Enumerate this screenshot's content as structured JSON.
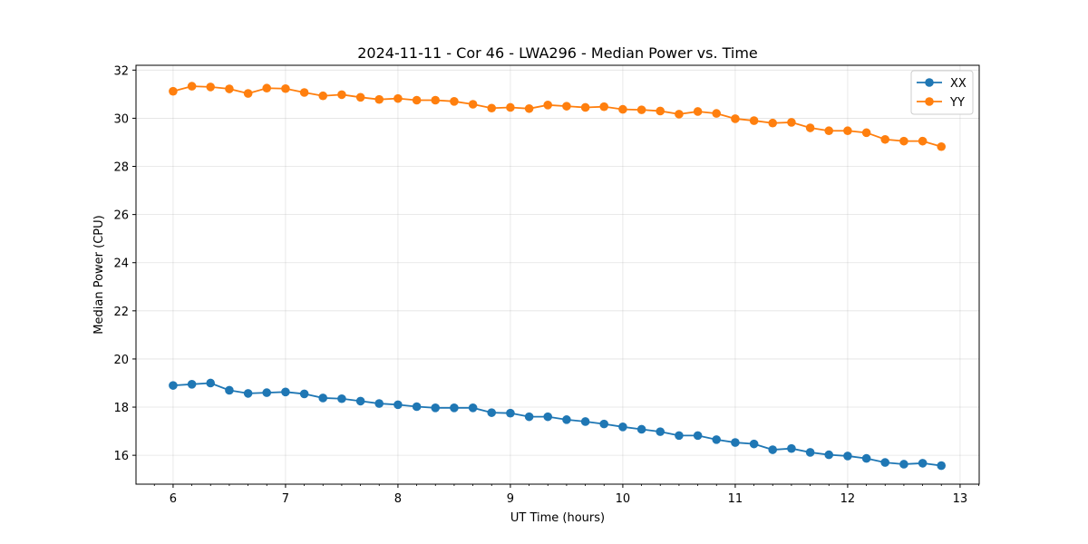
{
  "chart_data": {
    "type": "line",
    "title": "2024-11-11 - Cor 46 - LWA296 - Median Power vs. Time",
    "xlabel": "UT Time (hours)",
    "ylabel": "Median Power (CPU)",
    "xlim": [
      5.67,
      13.17
    ],
    "ylim": [
      14.8,
      32.2
    ],
    "xticks": [
      6,
      7,
      8,
      9,
      10,
      11,
      12,
      13
    ],
    "yticks": [
      16,
      18,
      20,
      22,
      24,
      26,
      28,
      30,
      32
    ],
    "grid": true,
    "legend_position": "top-right",
    "x": [
      6.0,
      6.167,
      6.333,
      6.5,
      6.667,
      6.833,
      7.0,
      7.167,
      7.333,
      7.5,
      7.667,
      7.833,
      8.0,
      8.167,
      8.333,
      8.5,
      8.667,
      8.833,
      9.0,
      9.167,
      9.333,
      9.5,
      9.667,
      9.833,
      10.0,
      10.167,
      10.333,
      10.5,
      10.667,
      10.833,
      11.0,
      11.167,
      11.333,
      11.5,
      11.667,
      11.833,
      12.0,
      12.167,
      12.333,
      12.5,
      12.667,
      12.833
    ],
    "series": [
      {
        "name": "XX",
        "color": "#1f77b4",
        "values": [
          18.9,
          18.95,
          19.0,
          18.7,
          18.57,
          18.6,
          18.63,
          18.55,
          18.38,
          18.35,
          18.25,
          18.15,
          18.1,
          18.02,
          17.97,
          17.97,
          17.97,
          17.77,
          17.75,
          17.6,
          17.6,
          17.48,
          17.4,
          17.3,
          17.18,
          17.08,
          16.98,
          16.82,
          16.82,
          16.65,
          16.53,
          16.47,
          16.23,
          16.28,
          16.12,
          16.02,
          15.97,
          15.87,
          15.7,
          15.63,
          15.67,
          15.57
        ]
      },
      {
        "name": "YY",
        "color": "#ff7f0e",
        "values": [
          31.12,
          31.33,
          31.3,
          31.22,
          31.03,
          31.25,
          31.23,
          31.07,
          30.93,
          30.98,
          30.87,
          30.78,
          30.82,
          30.75,
          30.75,
          30.7,
          30.58,
          30.42,
          30.45,
          30.4,
          30.55,
          30.5,
          30.45,
          30.48,
          30.37,
          30.35,
          30.3,
          30.17,
          30.28,
          30.2,
          29.98,
          29.9,
          29.8,
          29.83,
          29.6,
          29.48,
          29.48,
          29.4,
          29.12,
          29.05,
          29.05,
          28.82
        ]
      }
    ]
  }
}
